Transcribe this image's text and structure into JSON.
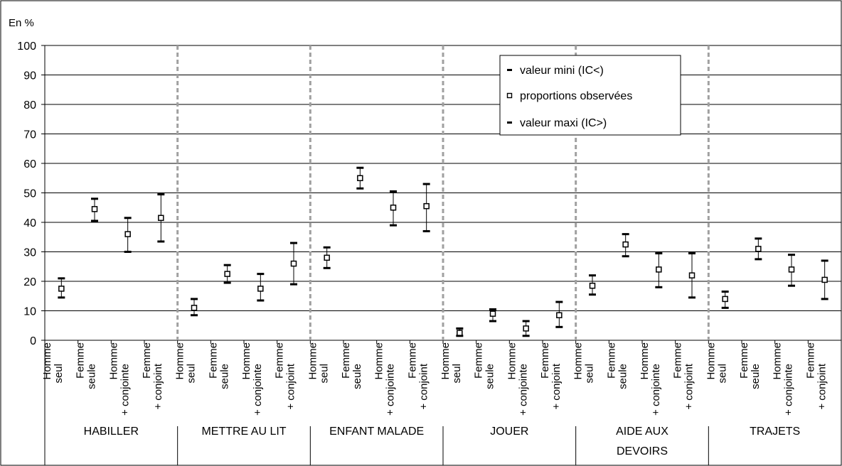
{
  "chart_data": {
    "type": "scatter",
    "subtype": "error-bar",
    "ylabel": "En %",
    "ylim": [
      0,
      100
    ],
    "yticks": [
      0,
      10,
      20,
      30,
      40,
      50,
      60,
      70,
      80,
      90,
      100
    ],
    "grid": true,
    "legend": {
      "position": "top-right",
      "entries": [
        "valeur mini (IC<)",
        "proportions observées",
        "valeur maxi (IC>)"
      ]
    },
    "subcategories": [
      "Homme seul",
      "Femme seule",
      "Homme + conjointe",
      "Femme + conjoint"
    ],
    "groups": [
      {
        "name": "HABILLER",
        "name_lines": [
          "HABILLER"
        ],
        "observed": [
          17.5,
          44.5,
          36,
          41.5
        ],
        "min": [
          14.5,
          40.5,
          30,
          33.5
        ],
        "max": [
          21,
          48,
          41.5,
          49.5
        ]
      },
      {
        "name": "METTRE AU LIT",
        "name_lines": [
          "METTRE AU LIT"
        ],
        "observed": [
          11,
          22.5,
          17.5,
          26
        ],
        "min": [
          8.5,
          19.5,
          13.5,
          19
        ],
        "max": [
          14,
          25.5,
          22.5,
          33
        ]
      },
      {
        "name": "ENFANT MALADE",
        "name_lines": [
          "ENFANT MALADE"
        ],
        "observed": [
          28,
          55,
          45,
          45.5
        ],
        "min": [
          24.5,
          51.5,
          39,
          37
        ],
        "max": [
          31.5,
          58.5,
          50.5,
          53
        ]
      },
      {
        "name": "JOUER",
        "name_lines": [
          "JOUER"
        ],
        "observed": [
          2.5,
          9,
          4,
          8.5
        ],
        "min": [
          1.5,
          6.5,
          1.5,
          4.5
        ],
        "max": [
          4,
          10.5,
          6.5,
          13
        ]
      },
      {
        "name": "AIDE AUX DEVOIRS",
        "name_lines": [
          "AIDE AUX",
          "DEVOIRS"
        ],
        "observed": [
          18.5,
          32.5,
          24,
          22
        ],
        "min": [
          15.5,
          28.5,
          18,
          14.5
        ],
        "max": [
          22,
          36,
          29.5,
          29.5
        ]
      },
      {
        "name": "TRAJETS",
        "name_lines": [
          "TRAJETS"
        ],
        "observed": [
          14,
          31,
          24,
          20.5
        ],
        "min": [
          11,
          27.5,
          18.5,
          14
        ],
        "max": [
          16.5,
          34.5,
          29,
          27
        ]
      }
    ]
  }
}
